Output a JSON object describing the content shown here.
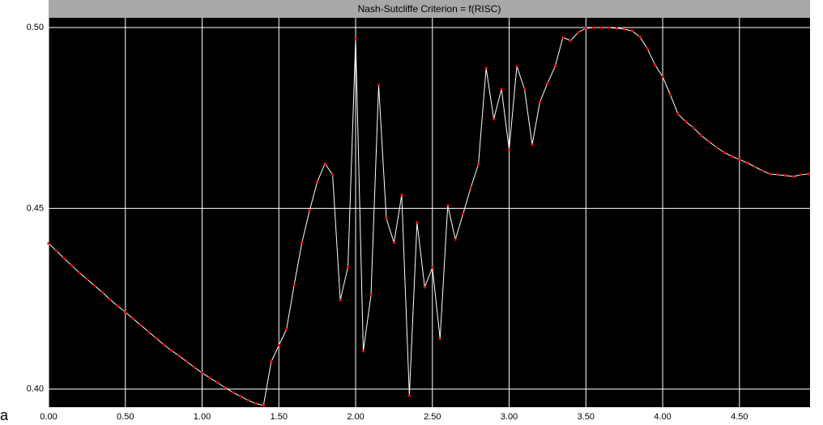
{
  "chart_data": {
    "type": "line",
    "title": "Nash-Sutcliffe Criterion = f(RISC)",
    "corner_label": "a",
    "x": [
      0.0,
      0.05,
      0.1,
      0.15,
      0.2,
      0.25,
      0.3,
      0.35,
      0.4,
      0.45,
      0.5,
      0.55,
      0.6,
      0.65,
      0.7,
      0.75,
      0.8,
      0.85,
      0.9,
      0.95,
      1.0,
      1.05,
      1.1,
      1.15,
      1.2,
      1.25,
      1.3,
      1.35,
      1.4,
      1.45,
      1.5,
      1.55,
      1.6,
      1.65,
      1.7,
      1.75,
      1.8,
      1.85,
      1.9,
      1.95,
      2.0,
      2.05,
      2.1,
      2.15,
      2.2,
      2.25,
      2.3,
      2.35,
      2.4,
      2.45,
      2.5,
      2.55,
      2.6,
      2.65,
      2.7,
      2.75,
      2.8,
      2.85,
      2.9,
      2.95,
      3.0,
      3.05,
      3.1,
      3.15,
      3.2,
      3.25,
      3.3,
      3.35,
      3.4,
      3.45,
      3.5,
      3.55,
      3.6,
      3.65,
      3.7,
      3.75,
      3.8,
      3.85,
      3.9,
      3.95,
      4.0,
      4.05,
      4.1,
      4.15,
      4.2,
      4.25,
      4.3,
      4.35,
      4.4,
      4.45,
      4.5,
      4.55,
      4.6,
      4.65,
      4.7,
      4.75,
      4.8,
      4.85,
      4.9,
      4.95
    ],
    "series": [
      {
        "name": "Nash-Sutcliffe",
        "color": "#ffffff",
        "marker_color": "#ff0000",
        "values": [
          0.4403,
          0.4383,
          0.4362,
          0.4342,
          0.4322,
          0.4304,
          0.4286,
          0.4268,
          0.4248,
          0.423,
          0.4213,
          0.4195,
          0.4177,
          0.4159,
          0.4141,
          0.4123,
          0.4107,
          0.4092,
          0.4076,
          0.406,
          0.4045,
          0.4031,
          0.4018,
          0.4004,
          0.3991,
          0.398,
          0.3969,
          0.396,
          0.3955,
          0.4076,
          0.4121,
          0.4166,
          0.4289,
          0.4405,
          0.4494,
          0.4573,
          0.4624,
          0.4593,
          0.4246,
          0.4338,
          0.4969,
          0.4105,
          0.426,
          0.4841,
          0.4472,
          0.4405,
          0.4537,
          0.3982,
          0.4461,
          0.4282,
          0.4336,
          0.4139,
          0.4508,
          0.4414,
          0.4485,
          0.4557,
          0.4622,
          0.4888,
          0.4747,
          0.483,
          0.4662,
          0.4893,
          0.483,
          0.4676,
          0.4794,
          0.4846,
          0.4893,
          0.4973,
          0.4964,
          0.4987,
          0.4998,
          0.5,
          0.5,
          0.5,
          0.4998,
          0.4996,
          0.4991,
          0.4975,
          0.4942,
          0.4897,
          0.4864,
          0.4814,
          0.4761,
          0.474,
          0.4723,
          0.4702,
          0.4685,
          0.4669,
          0.4655,
          0.4644,
          0.4635,
          0.4626,
          0.4615,
          0.4604,
          0.4595,
          0.4593,
          0.4591,
          0.4588,
          0.4593,
          0.4595
        ]
      }
    ],
    "xlim": [
      0,
      4.96
    ],
    "ylim": [
      0.395,
      0.5027
    ],
    "xticks": [
      {
        "value": 0,
        "label": "0.00"
      },
      {
        "value": 0.5,
        "label": "0.50"
      },
      {
        "value": 1,
        "label": "1.00"
      },
      {
        "value": 1.5,
        "label": "1.50"
      },
      {
        "value": 2,
        "label": "2.00"
      },
      {
        "value": 2.5,
        "label": "2.50"
      },
      {
        "value": 3,
        "label": "3.00"
      },
      {
        "value": 3.5,
        "label": "3.50"
      },
      {
        "value": 4,
        "label": "4.00"
      },
      {
        "value": 4.5,
        "label": "4.50"
      }
    ],
    "yticks": [
      {
        "value": 0.4,
        "label": "0.40"
      },
      {
        "value": 0.45,
        "label": "0.45"
      },
      {
        "value": 0.5,
        "label": "0.50"
      }
    ],
    "grid": true,
    "background": "#000000"
  }
}
